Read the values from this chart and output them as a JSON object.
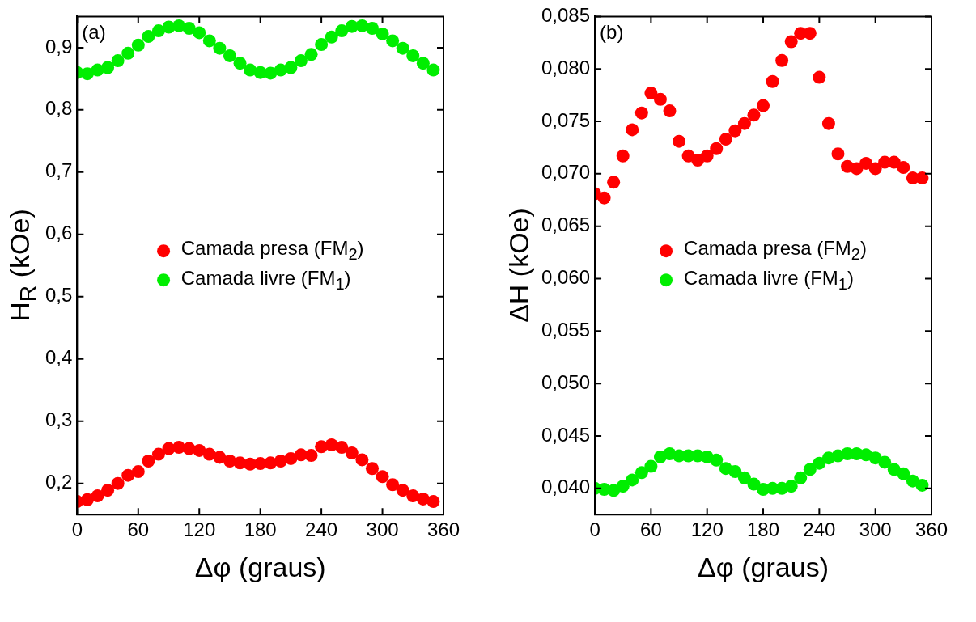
{
  "chart_data": [
    {
      "type": "scatter",
      "xlabel": "Δφ (graus)",
      "ylabel": "H$_{R}$ (kOe)",
      "annotations": [
        "(a)"
      ],
      "legend": "center",
      "marker": "circle",
      "x": [
        0,
        10,
        20,
        30,
        40,
        50,
        60,
        70,
        80,
        90,
        100,
        110,
        120,
        130,
        140,
        150,
        160,
        170,
        180,
        190,
        200,
        210,
        220,
        230,
        240,
        250,
        260,
        270,
        280,
        290,
        300,
        310,
        320,
        330,
        340,
        350
      ],
      "xlim": [
        0,
        360
      ],
      "xticks": [
        0,
        60,
        120,
        180,
        240,
        300,
        360
      ],
      "ylim": [
        0.15,
        0.95
      ],
      "yticks": [
        {
          "value": 0.2,
          "label": "0,2"
        },
        {
          "value": 0.3,
          "label": "0,3"
        },
        {
          "value": 0.4,
          "label": "0,4"
        },
        {
          "value": 0.5,
          "label": "0,5"
        },
        {
          "value": 0.6,
          "label": "0,6"
        },
        {
          "value": 0.7,
          "label": "0,7"
        },
        {
          "value": 0.8,
          "label": "0,8"
        },
        {
          "value": 0.9,
          "label": "0,9"
        }
      ],
      "series": [
        {
          "name": "Camada presa (FM$_{2}$)",
          "color": "#ff0000",
          "values": [
            0.171,
            0.174,
            0.18,
            0.189,
            0.2,
            0.213,
            0.219,
            0.236,
            0.247,
            0.256,
            0.258,
            0.256,
            0.253,
            0.247,
            0.242,
            0.236,
            0.233,
            0.231,
            0.232,
            0.233,
            0.236,
            0.24,
            0.246,
            0.245,
            0.259,
            0.262,
            0.258,
            0.249,
            0.238,
            0.224,
            0.211,
            0.198,
            0.189,
            0.18,
            0.175,
            0.171
          ]
        },
        {
          "name": "Camada livre (FM$_{1}$)",
          "color": "#00ee00",
          "values": [
            0.86,
            0.858,
            0.864,
            0.868,
            0.879,
            0.891,
            0.904,
            0.918,
            0.927,
            0.933,
            0.935,
            0.931,
            0.924,
            0.911,
            0.899,
            0.887,
            0.875,
            0.864,
            0.86,
            0.859,
            0.864,
            0.868,
            0.879,
            0.889,
            0.905,
            0.917,
            0.927,
            0.934,
            0.935,
            0.931,
            0.922,
            0.911,
            0.899,
            0.887,
            0.875,
            0.864
          ]
        }
      ]
    },
    {
      "type": "scatter",
      "xlabel": "Δφ (graus)",
      "ylabel": "ΔH (kOe)",
      "annotations": [
        "(b)"
      ],
      "legend": "center",
      "marker": "circle",
      "x": [
        0,
        10,
        20,
        30,
        40,
        50,
        60,
        70,
        80,
        90,
        100,
        110,
        120,
        130,
        140,
        150,
        160,
        170,
        180,
        190,
        200,
        210,
        220,
        230,
        240,
        250,
        260,
        270,
        280,
        290,
        300,
        310,
        320,
        330,
        340,
        350
      ],
      "xlim": [
        0,
        360
      ],
      "xticks": [
        0,
        60,
        120,
        180,
        240,
        300,
        360
      ],
      "ylim": [
        0.0375,
        0.085
      ],
      "yticks": [
        {
          "value": 0.04,
          "label": "0,040"
        },
        {
          "value": 0.045,
          "label": "0,045"
        },
        {
          "value": 0.05,
          "label": "0,050"
        },
        {
          "value": 0.055,
          "label": "0,055"
        },
        {
          "value": 0.06,
          "label": "0,060"
        },
        {
          "value": 0.065,
          "label": "0,065"
        },
        {
          "value": 0.07,
          "label": "0,070"
        },
        {
          "value": 0.075,
          "label": "0,075"
        },
        {
          "value": 0.08,
          "label": "0,080"
        },
        {
          "value": 0.085,
          "label": "0,085"
        }
      ],
      "series": [
        {
          "name": "Camada presa (FM$_{2}$)",
          "color": "#ff0000",
          "values": [
            0.0681,
            0.0677,
            0.0692,
            0.0717,
            0.0742,
            0.0758,
            0.0777,
            0.0771,
            0.076,
            0.0731,
            0.0717,
            0.0713,
            0.0717,
            0.0724,
            0.0733,
            0.0741,
            0.0748,
            0.0756,
            0.0765,
            0.0788,
            0.0808,
            0.0826,
            0.0834,
            0.0834,
            0.0792,
            0.0748,
            0.0719,
            0.0707,
            0.0705,
            0.071,
            0.0705,
            0.0711,
            0.0711,
            0.0706,
            0.0696,
            0.0696
          ]
        },
        {
          "name": "Camada livre (FM$_{1}$)",
          "color": "#00ee00",
          "values": [
            0.04,
            0.0399,
            0.0398,
            0.0402,
            0.0408,
            0.0415,
            0.0421,
            0.043,
            0.0433,
            0.0431,
            0.0431,
            0.0431,
            0.043,
            0.0427,
            0.0419,
            0.0416,
            0.041,
            0.0404,
            0.0399,
            0.04,
            0.04,
            0.0402,
            0.041,
            0.0418,
            0.0424,
            0.0429,
            0.0431,
            0.0433,
            0.0433,
            0.0432,
            0.0429,
            0.0425,
            0.0418,
            0.0414,
            0.0407,
            0.0403
          ]
        }
      ]
    }
  ]
}
